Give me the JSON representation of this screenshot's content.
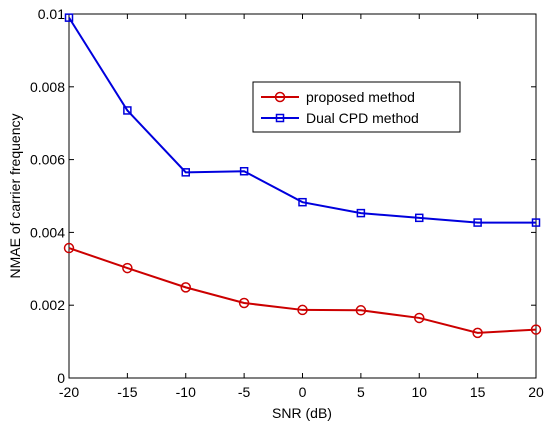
{
  "chart_data": {
    "type": "line",
    "xlabel": "SNR (dB)",
    "ylabel": "NMAE of carrier frequency",
    "xlim": [
      -20,
      20
    ],
    "ylim": [
      0,
      0.01
    ],
    "x_ticks": [
      "-20",
      "-15",
      "-10",
      "-5",
      "0",
      "5",
      "10",
      "15",
      "20"
    ],
    "y_ticks": [
      "0",
      "0.002",
      "0.004",
      "0.006",
      "0.008",
      "0.01"
    ],
    "grid": false,
    "legend_position": "upper-right",
    "x": [
      -20,
      -15,
      -10,
      -5,
      0,
      5,
      10,
      15,
      20
    ],
    "series": [
      {
        "name": "proposed method",
        "color": "#cc0000",
        "marker": "circle",
        "values": [
          0.00357,
          0.00302,
          0.00249,
          0.00206,
          0.00187,
          0.00186,
          0.00165,
          0.00124,
          0.00133
        ]
      },
      {
        "name": "Dual CPD method",
        "color": "#0000dd",
        "marker": "square",
        "values": [
          0.0099,
          0.00735,
          0.00565,
          0.00568,
          0.00483,
          0.00453,
          0.0044,
          0.00427,
          0.00427
        ]
      }
    ]
  }
}
